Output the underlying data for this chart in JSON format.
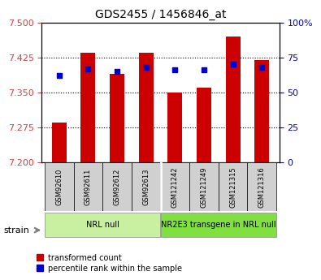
{
  "title": "GDS2455 / 1456846_at",
  "samples": [
    "GSM92610",
    "GSM92611",
    "GSM92612",
    "GSM92613",
    "GSM121242",
    "GSM121249",
    "GSM121315",
    "GSM121316"
  ],
  "transformed_count": [
    7.285,
    7.435,
    7.39,
    7.435,
    7.35,
    7.36,
    7.47,
    7.42
  ],
  "percentile_rank": [
    62,
    67,
    65,
    68,
    66,
    66,
    70,
    68
  ],
  "ylim_left": [
    7.2,
    7.5
  ],
  "ylim_right": [
    0,
    100
  ],
  "yticks_left": [
    7.2,
    7.275,
    7.35,
    7.425,
    7.5
  ],
  "yticks_right": [
    0,
    25,
    50,
    75,
    100
  ],
  "groups": [
    {
      "label": "NRL null",
      "indices": [
        0,
        1,
        2,
        3
      ],
      "color": "#c8f0a0"
    },
    {
      "label": "NR2E3 transgene in NRL null",
      "indices": [
        4,
        5,
        6,
        7
      ],
      "color": "#80e040"
    }
  ],
  "bar_color": "#cc0000",
  "dot_color": "#0000cc",
  "bar_width": 0.5,
  "base_value": 7.2,
  "tick_label_color_left": "#cc4444",
  "tick_label_color_right": "#0000cc",
  "legend_items": [
    {
      "color": "#cc0000",
      "label": "transformed count"
    },
    {
      "color": "#0000cc",
      "label": "percentile rank within the sample"
    }
  ]
}
